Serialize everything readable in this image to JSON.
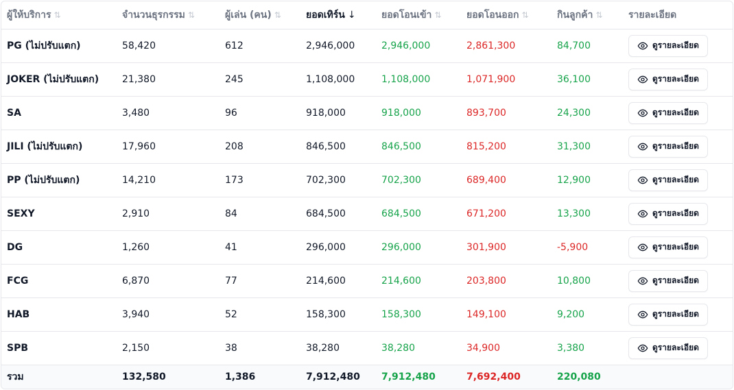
{
  "headers": [
    {
      "label": "ผู้ให้บริการ",
      "sort_icon": "sort-both-icon"
    },
    {
      "label": "จำนวนธุรกรรม",
      "sort_icon": "sort-both-icon"
    },
    {
      "label": "ผู้เล่น (คน)",
      "sort_icon": "sort-both-icon"
    },
    {
      "label": "ยอดเทิร์น",
      "sort_icon": "arrow-down-icon"
    },
    {
      "label": "ยอดโอนเข้า",
      "sort_icon": "sort-both-icon"
    },
    {
      "label": "ยอดโอนออก",
      "sort_icon": "sort-both-icon"
    },
    {
      "label": "กินลูกค้า",
      "sort_icon": "sort-both-icon"
    },
    {
      "label": "รายละเอียด"
    }
  ],
  "detail_button_label": "ดูรายละเอียด",
  "rows": [
    {
      "provider": "PG (ไม่ปรับแตก)",
      "transactions": "58,420",
      "players": "612",
      "turnover": "2,946,000",
      "transfer_in": "2,946,000",
      "transfer_out": "2,861,300",
      "profit": "84,700"
    },
    {
      "provider": "JOKER (ไม่ปรับแตก)",
      "transactions": "21,380",
      "players": "245",
      "turnover": "1,108,000",
      "transfer_in": "1,108,000",
      "transfer_out": "1,071,900",
      "profit": "36,100"
    },
    {
      "provider": "SA",
      "transactions": "3,480",
      "players": "96",
      "turnover": "918,000",
      "transfer_in": "918,000",
      "transfer_out": "893,700",
      "profit": "24,300"
    },
    {
      "provider": "JILI (ไม่ปรับแตก)",
      "transactions": "17,960",
      "players": "208",
      "turnover": "846,500",
      "transfer_in": "846,500",
      "transfer_out": "815,200",
      "profit": "31,300"
    },
    {
      "provider": "PP (ไม่ปรับแตก)",
      "transactions": "14,210",
      "players": "173",
      "turnover": "702,300",
      "transfer_in": "702,300",
      "transfer_out": "689,400",
      "profit": "12,900"
    },
    {
      "provider": "SEXY",
      "transactions": "2,910",
      "players": "84",
      "turnover": "684,500",
      "transfer_in": "684,500",
      "transfer_out": "671,200",
      "profit": "13,300"
    },
    {
      "provider": "DG",
      "transactions": "1,260",
      "players": "41",
      "turnover": "296,000",
      "transfer_in": "296,000",
      "transfer_out": "301,900",
      "profit": "-5,900"
    },
    {
      "provider": "FCG",
      "transactions": "6,870",
      "players": "77",
      "turnover": "214,600",
      "transfer_in": "214,600",
      "transfer_out": "203,800",
      "profit": "10,800"
    },
    {
      "provider": "HAB",
      "transactions": "3,940",
      "players": "52",
      "turnover": "158,300",
      "transfer_in": "158,300",
      "transfer_out": "149,100",
      "profit": "9,200"
    },
    {
      "provider": "SPB",
      "transactions": "2,150",
      "players": "38",
      "turnover": "38,280",
      "transfer_in": "38,280",
      "transfer_out": "34,900",
      "profit": "3,380"
    }
  ],
  "totals": {
    "label": "รวม",
    "transactions": "132,580",
    "players": "1,386",
    "turnover": "7,912,480",
    "transfer_in": "7,912,480",
    "transfer_out": "7,692,400",
    "profit": "220,080"
  },
  "colors": {
    "positive": "#16a34a",
    "negative": "#dc2626",
    "border": "#e5e7eb",
    "footer_bg": "#f8fafc"
  }
}
